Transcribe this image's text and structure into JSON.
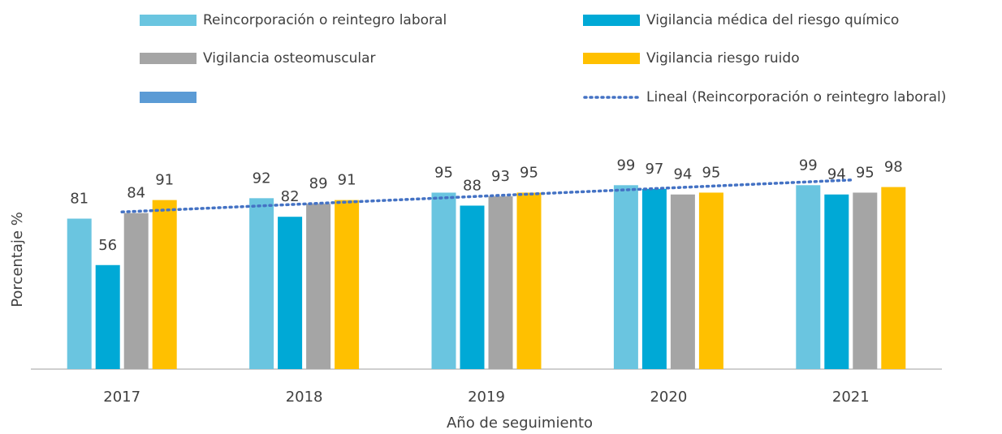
{
  "chart_data": {
    "type": "bar",
    "x_label": "Año de seguimiento",
    "y_label": "Porcentaje %",
    "categories": [
      "2017",
      "2018",
      "2019",
      "2020",
      "2021"
    ],
    "series": [
      {
        "name": "Reincorporación o reintegro laboral",
        "color": "#6ac5e0",
        "values": [
          81,
          92,
          95,
          99,
          99
        ]
      },
      {
        "name": "Vigilancia médica del riesgo químico",
        "color": "#00a9d6",
        "values": [
          56,
          82,
          88,
          97,
          94
        ]
      },
      {
        "name": "Vigilancia osteomuscular",
        "color": "#a5a5a5",
        "values": [
          84,
          89,
          93,
          94,
          95
        ]
      },
      {
        "name": "Vigilancia riesgo ruido",
        "color": "#ffc000",
        "values": [
          91,
          91,
          95,
          95,
          98
        ]
      }
    ],
    "trendline": {
      "name": "Lineal (Reincorporación o reintegro laboral)",
      "color": "#4472c4",
      "series": 0
    },
    "ylim": [
      0,
      100
    ],
    "data_labels": true
  }
}
